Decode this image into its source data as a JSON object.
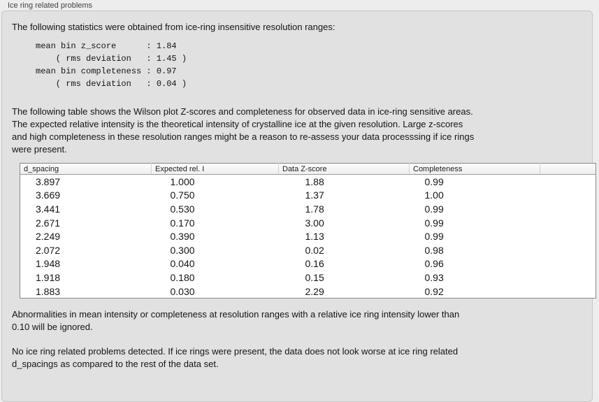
{
  "panel": {
    "title": "Ice ring related problems"
  },
  "colors": {
    "outer_background": "#ededed",
    "groupbox_background": "#e1e1e1",
    "groupbox_border": "#c6c6c6",
    "table_border": "#8b8b8b",
    "table_header_background": "#f4f4f4",
    "table_body_background": "#ffffff",
    "text": "#141414",
    "title_text": "#3f3f3f"
  },
  "intro": {
    "text": "The following statistics were obtained from ice-ring insensitive resolution ranges:"
  },
  "stats": {
    "lines": [
      "mean bin z_score      : 1.84",
      "    ( rms deviation   : 1.45 )",
      "mean bin completeness : 0.97",
      "    ( rms deviation   : 0.04 )"
    ]
  },
  "table_description": {
    "lines": [
      "The following table shows the Wilson plot Z-scores and completeness for observed data in ice-ring sensitive areas.",
      "The expected relative intensity is the theoretical intensity of crystalline ice at the given resolution. Large z-scores",
      "and high completeness in these resolution ranges might be a reason to re-assess your data processsing if ice rings",
      "were present."
    ]
  },
  "table": {
    "columns": [
      "d_spacing",
      "Expected rel. I",
      "Data Z-score",
      "Completeness",
      ""
    ],
    "rows": [
      [
        "3.897",
        "1.000",
        "1.88",
        "0.99"
      ],
      [
        "3.669",
        "0.750",
        "1.37",
        "1.00"
      ],
      [
        "3.441",
        "0.530",
        "1.78",
        "0.99"
      ],
      [
        "2.671",
        "0.170",
        "3.00",
        "0.99"
      ],
      [
        "2.249",
        "0.390",
        "1.13",
        "0.99"
      ],
      [
        "2.072",
        "0.300",
        "0.02",
        "0.98"
      ],
      [
        "1.948",
        "0.040",
        "0.16",
        "0.96"
      ],
      [
        "1.918",
        "0.180",
        "0.15",
        "0.93"
      ],
      [
        "1.883",
        "0.030",
        "2.29",
        "0.92"
      ]
    ]
  },
  "ignore_note": {
    "lines": [
      "Abnormalities in mean intensity or completeness at resolution ranges with a relative ice ring intensity lower than",
      "0.10 will be ignored."
    ]
  },
  "conclusion": {
    "lines": [
      "No ice ring related problems detected. If ice rings were present, the data does not look worse at ice ring related",
      "d_spacings as compared to the rest of the data set."
    ]
  }
}
